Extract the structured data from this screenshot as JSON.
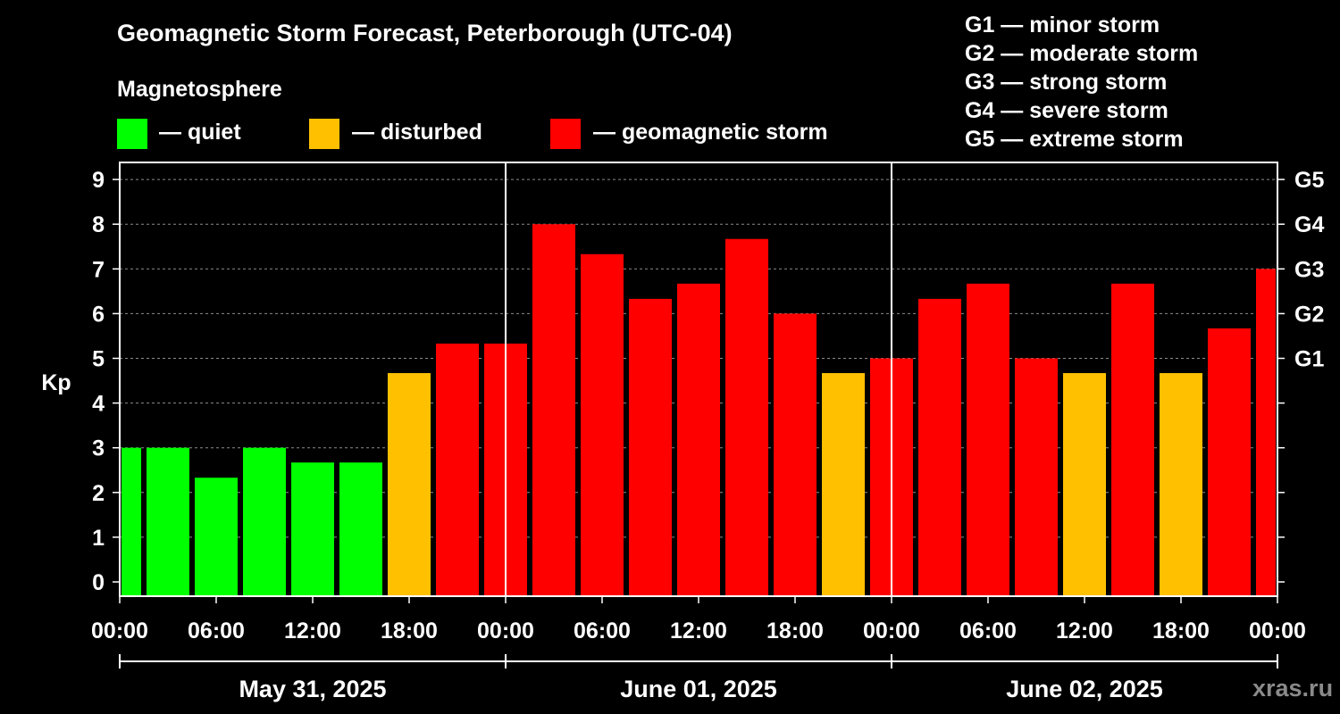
{
  "title": "Geomagnetic Storm Forecast, Peterborough (UTC-04)",
  "legend": {
    "heading": "Magnetosphere",
    "items": [
      {
        "label": "— quiet",
        "color": "#00ff00"
      },
      {
        "label": "— disturbed",
        "color": "#ffc000"
      },
      {
        "label": "— geomagnetic storm",
        "color": "#ff0000"
      }
    ]
  },
  "g_scale": [
    "G1 — minor storm",
    "G2 — moderate storm",
    "G3 — strong storm",
    "G4 — severe storm",
    "G5 — extreme storm"
  ],
  "brand": "xras.ru",
  "chart_data": {
    "type": "bar",
    "title": "Geomagnetic Storm Forecast, Peterborough (UTC-04)",
    "ylabel": "Kp",
    "ylim": [
      0,
      9
    ],
    "y_ticks": [
      "0",
      "1",
      "2",
      "3",
      "4",
      "5",
      "6",
      "7",
      "8",
      "9"
    ],
    "right_ticks": [
      {
        "kp": 5,
        "label": "G1"
      },
      {
        "kp": 6,
        "label": "G2"
      },
      {
        "kp": 7,
        "label": "G3"
      },
      {
        "kp": 8,
        "label": "G4"
      },
      {
        "kp": 9,
        "label": "G5"
      }
    ],
    "x_ticks": [
      "00:00",
      "06:00",
      "12:00",
      "18:00",
      "00:00",
      "06:00",
      "12:00",
      "18:00",
      "00:00",
      "06:00",
      "12:00",
      "18:00",
      "00:00"
    ],
    "days": [
      "May 31, 2025",
      "June 01, 2025",
      "June 02, 2025"
    ],
    "interval_hours": 3,
    "values": [
      3.0,
      3.0,
      2.33,
      3.0,
      2.67,
      2.67,
      4.67,
      5.33,
      5.33,
      8.0,
      7.33,
      6.33,
      6.67,
      7.67,
      6.0,
      4.67,
      5.0,
      6.33,
      6.67,
      5.0,
      4.67,
      6.67,
      4.67,
      5.67,
      7.0
    ],
    "color_levels": {
      "quiet": "#00ff00",
      "disturbed": "#ffc000",
      "storm": "#ff0000"
    },
    "thresholds": {
      "disturbed_min": 4,
      "storm_min": 5
    },
    "grid": true
  }
}
